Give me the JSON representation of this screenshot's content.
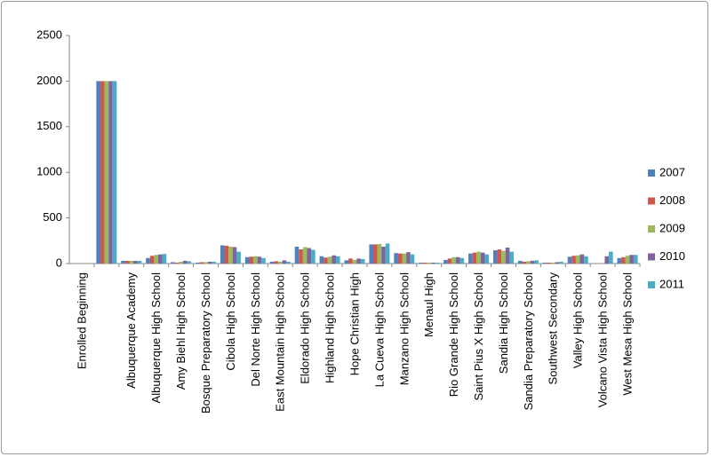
{
  "chart_data": {
    "type": "bar",
    "categories": [
      "Enrolled Beginning",
      null,
      "Albuquerque Academy",
      "Albuquerque High School",
      "Amy Biehl High School",
      "Bosque Preparatory School",
      "Cibola High School",
      "Del Norte High School",
      "East Mountain High School",
      "Eldorado High School",
      "Highland High School",
      "Hope Christian High",
      "La Cueva High School",
      "Manzano High School",
      "Menaul High",
      "Rio Grande High School",
      "Saint Pius X High School",
      "Sandia High School",
      "Sandia Preparatory School",
      "Southwest Secondary",
      "Valley High School",
      "Volcano Vista High School",
      "West Mesa High School"
    ],
    "series": [
      {
        "name": "2007",
        "color": "#4f81bd",
        "values": [
          null,
          2000,
          30,
          60,
          15,
          10,
          200,
          70,
          20,
          185,
          80,
          35,
          210,
          115,
          10,
          40,
          110,
          145,
          30,
          10,
          75,
          0,
          60
        ]
      },
      {
        "name": "2008",
        "color": "#d0574d",
        "values": [
          null,
          2000,
          30,
          85,
          10,
          15,
          195,
          75,
          25,
          155,
          65,
          55,
          210,
          110,
          10,
          55,
          120,
          155,
          20,
          10,
          85,
          0,
          70
        ]
      },
      {
        "name": "2009",
        "color": "#9bbb59",
        "values": [
          null,
          2000,
          30,
          95,
          20,
          15,
          185,
          80,
          20,
          180,
          75,
          40,
          215,
          110,
          10,
          70,
          130,
          140,
          25,
          10,
          90,
          0,
          85
        ]
      },
      {
        "name": "2010",
        "color": "#8064a2",
        "values": [
          null,
          2000,
          30,
          100,
          30,
          20,
          180,
          75,
          35,
          170,
          90,
          55,
          185,
          125,
          10,
          70,
          120,
          175,
          30,
          15,
          100,
          80,
          95
        ]
      },
      {
        "name": "2011",
        "color": "#4bacc6",
        "values": [
          null,
          2000,
          30,
          105,
          25,
          20,
          130,
          60,
          20,
          150,
          80,
          50,
          220,
          100,
          10,
          60,
          100,
          130,
          35,
          20,
          80,
          130,
          95
        ]
      }
    ],
    "ylim": [
      0,
      2500
    ],
    "yticks": [
      0,
      500,
      1000,
      1500,
      2000,
      2500
    ],
    "legend": "right"
  }
}
